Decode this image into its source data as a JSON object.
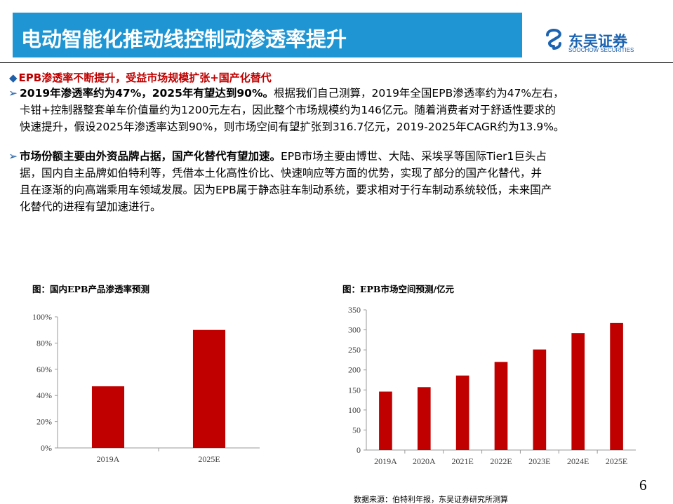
{
  "header": {
    "title": "电动智能化推动线控制动渗透率提升",
    "logo_name": "东吴证券",
    "logo_sub": "SOOCHOW SECURITIES",
    "logo_mark": "SCS"
  },
  "section": {
    "heading": "EPB渗透率不断提升，受益市场规模扩张+国产化替代"
  },
  "bullets": [
    {
      "bold": "2019年渗透率约为47%，2025年有望达到90%。",
      "text": "根据我们自己测算，2019年全国EPB渗透率约为47%左右，卡钳+控制器整套单车价值量约为1200元左右，因此整个市场规模约为146亿元。随着消费者对于舒适性要求的快速提升，假设2025年渗透率达到90%，则市场空间有望扩张到316.7亿元，2019-2025年CAGR约为13.9%。"
    },
    {
      "bold": "市场份额主要由外资品牌占据，国产化替代有望加速。",
      "text": "EPB市场主要由博世、大陆、采埃孚等国际Tier1巨头占据，国内自主品牌如伯特利等，凭借本土化高性价比、快速响应等方面的优势，实现了部分的国产化替代，并且在逐渐的向高端乘用车领域发展。因为EPB属于静态驻车制动系统，要求相对于行车制动系统较低，未来国产化替代的进程有望加速进行。"
    }
  ],
  "bullet_lines": [
    [
      "卡钳+控制器整套单车价值量约为1200元左右，因此整个市场规模约为146亿元。随着消费者对于舒适性要求的",
      "快速提升，假设2025年渗透率达到90%，则市场空间有望扩张到316.7亿元，2019-2025年CAGR约为13.9%。"
    ],
    [
      "据，国内自主品牌如伯特利等，凭借本土化高性价比、快速响应等方面的优势，实现了部分的国产化替代，并",
      "且在逐渐的向高端乘用车领域发展。因为EPB属于静态驻车制动系统，要求相对于行车制动系统较低，未来国产",
      "化替代的进程有望加速进行。"
    ]
  ],
  "bullet_first_rest": [
    "根据我们自己测算，2019年全国EPB渗透率约为47%左右，",
    "EPB市场主要由博世、大陆、采埃孚等国际Tier1巨头占"
  ],
  "chart_data": [
    {
      "type": "bar",
      "title": "图：国内EPB产品渗透率预测",
      "categories": [
        "2019A",
        "2025E"
      ],
      "values": [
        47,
        90
      ],
      "ylim": [
        0,
        100
      ],
      "yticks": [
        0,
        20,
        40,
        60,
        80,
        100
      ],
      "ytick_labels": [
        "0%",
        "20%",
        "40%",
        "60%",
        "80%",
        "100%"
      ],
      "color": "#c00000",
      "grid": false
    },
    {
      "type": "bar",
      "title": "图：EPB市场空间预测/亿元",
      "categories": [
        "2019A",
        "2020A",
        "2021E",
        "2022E",
        "2023E",
        "2024E",
        "2025E"
      ],
      "values": [
        146,
        157,
        186,
        220,
        251,
        292,
        317
      ],
      "ylim": [
        0,
        350
      ],
      "yticks": [
        0,
        50,
        100,
        150,
        200,
        250,
        300,
        350
      ],
      "ytick_labels": [
        "0",
        "50",
        "100",
        "150",
        "200",
        "250",
        "300",
        "350"
      ],
      "color": "#c00000",
      "grid": false
    }
  ],
  "footer": {
    "source": "数据来源：伯特利年报，东吴证券研究所测算",
    "page": "6"
  }
}
